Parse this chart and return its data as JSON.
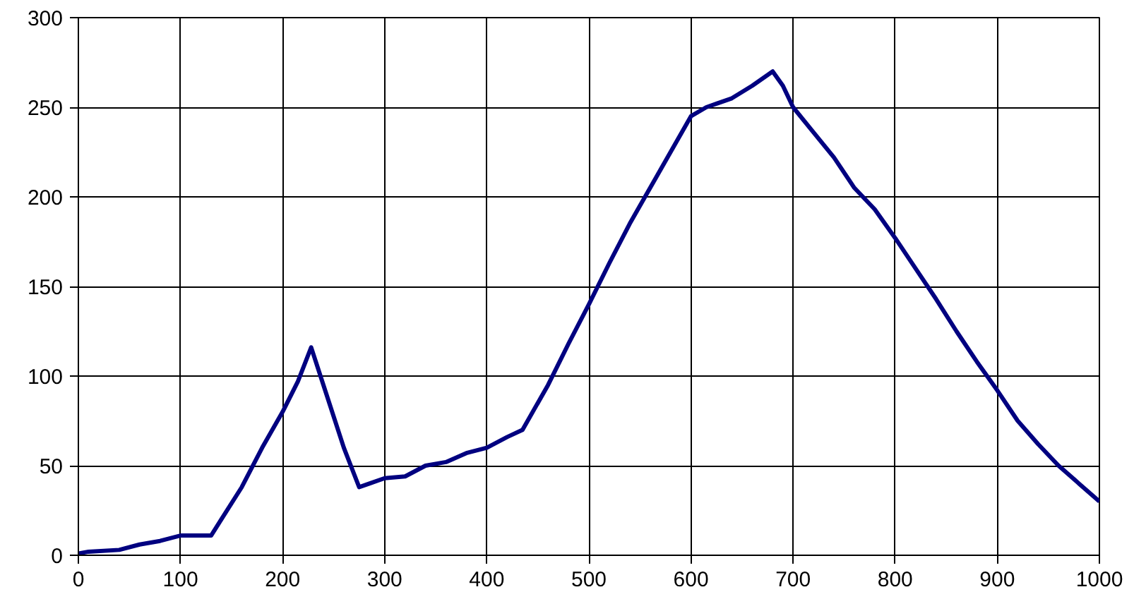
{
  "chart_data": {
    "type": "line",
    "xlim": [
      0,
      1000
    ],
    "ylim": [
      0,
      300
    ],
    "xticks": [
      0,
      100,
      200,
      300,
      400,
      500,
      600,
      700,
      800,
      900,
      1000
    ],
    "yticks": [
      0,
      50,
      100,
      150,
      200,
      250,
      300
    ],
    "grid": true,
    "marker": "none",
    "line_style": "solid",
    "series": [
      {
        "color": "#000080",
        "x": [
          0,
          10,
          40,
          60,
          80,
          100,
          130,
          140,
          160,
          180,
          200,
          215,
          228,
          240,
          260,
          275,
          285,
          300,
          320,
          340,
          360,
          380,
          400,
          420,
          435,
          460,
          480,
          500,
          520,
          540,
          560,
          580,
          600,
          615,
          640,
          660,
          680,
          690,
          700,
          720,
          740,
          760,
          780,
          800,
          820,
          840,
          860,
          880,
          900,
          920,
          940,
          960,
          980,
          1000
        ],
        "values": [
          1,
          2,
          3,
          6,
          8,
          11,
          11,
          20,
          38,
          60,
          80,
          97,
          116,
          95,
          60,
          38,
          40,
          43,
          44,
          50,
          52,
          57,
          60,
          66,
          70,
          95,
          118,
          140,
          163,
          185,
          205,
          225,
          245,
          250,
          255,
          262,
          270,
          262,
          250,
          236,
          222,
          205,
          193,
          177,
          160,
          143,
          125,
          108,
          92,
          75,
          62,
          50,
          40,
          30
        ]
      }
    ]
  }
}
